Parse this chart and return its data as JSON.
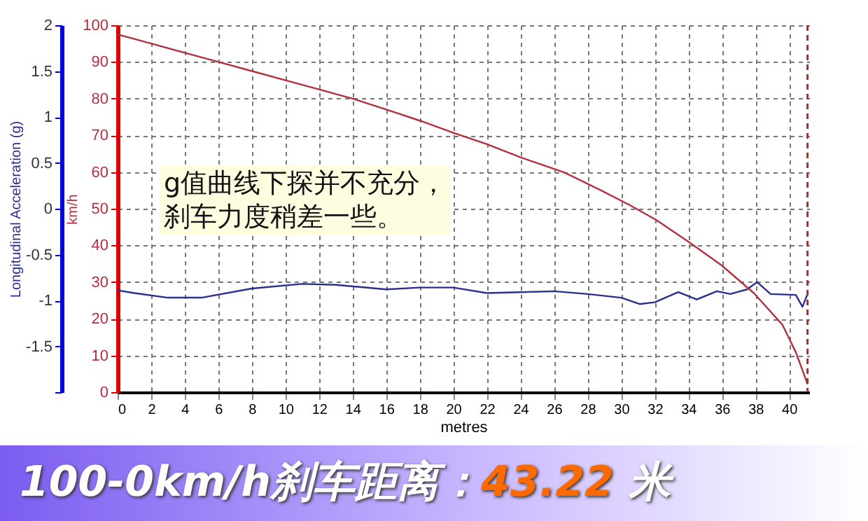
{
  "chart_data": {
    "type": "line",
    "title": "100-0km/h刹车距离：43.22 米",
    "annotations": [
      "g值曲线下探并不充分，",
      "刹车力度稍差一些。"
    ],
    "xlabel": "metres",
    "ylabel": "Longitudinal Acceleration (g)",
    "y2label": "km/h",
    "xlim": [
      0,
      41.2
    ],
    "xticks": [
      0,
      2,
      4,
      6,
      8,
      10,
      12,
      14,
      16,
      18,
      20,
      22,
      24,
      26,
      28,
      30,
      32,
      34,
      36,
      38,
      40
    ],
    "ylim": [
      -2,
      2
    ],
    "yticks": [
      {
        "value": -2,
        "label": null
      },
      -1.5,
      -1,
      -0.5,
      0,
      0.5,
      1,
      1.5,
      2
    ],
    "y2lim": [
      0,
      100
    ],
    "y2ticks": [
      0,
      10,
      20,
      30,
      40,
      50,
      60,
      70,
      80,
      90,
      100
    ],
    "grid": true,
    "line_style": "solid",
    "ref_lines": [
      {
        "axis": "x",
        "value": 41.1,
        "color": "#8b3a3a",
        "line_style": "dashed"
      }
    ],
    "series": [
      {
        "color": "#2b2f8f",
        "axis": "y",
        "x": [
          0,
          1,
          3,
          5,
          8,
          11,
          13,
          16,
          18,
          20,
          22,
          24,
          26,
          28,
          30,
          31.1,
          32,
          33.4,
          34.5,
          35.7,
          36.5,
          37.5,
          38.1,
          38.9,
          40.4,
          40.8,
          41.1
        ],
        "values": [
          -0.89,
          -0.92,
          -0.97,
          -0.97,
          -0.87,
          -0.82,
          -0.83,
          -0.88,
          -0.86,
          -0.86,
          -0.92,
          -0.91,
          -0.9,
          -0.93,
          -0.97,
          -1.04,
          -1.02,
          -0.91,
          -0.99,
          -0.9,
          -0.93,
          -0.88,
          -0.8,
          -0.93,
          -0.94,
          -1.07,
          -0.93
        ]
      },
      {
        "color": "#b0313f",
        "axis": "y2",
        "x": [
          0,
          2,
          4,
          6,
          8,
          10,
          12,
          14,
          16.1,
          18,
          20,
          22,
          24,
          26.6,
          28.8,
          30.5,
          32.1,
          34.1,
          36,
          37.9,
          39.6,
          40.4,
          40.8,
          41.1
        ],
        "values": [
          97.5,
          95,
          92.5,
          90,
          87.5,
          85,
          82.5,
          80,
          76.9,
          74,
          70.7,
          67.6,
          64,
          59.9,
          55,
          51,
          46.9,
          40.7,
          34.5,
          27,
          18.4,
          10.9,
          6,
          2.2
        ]
      }
    ]
  }
}
